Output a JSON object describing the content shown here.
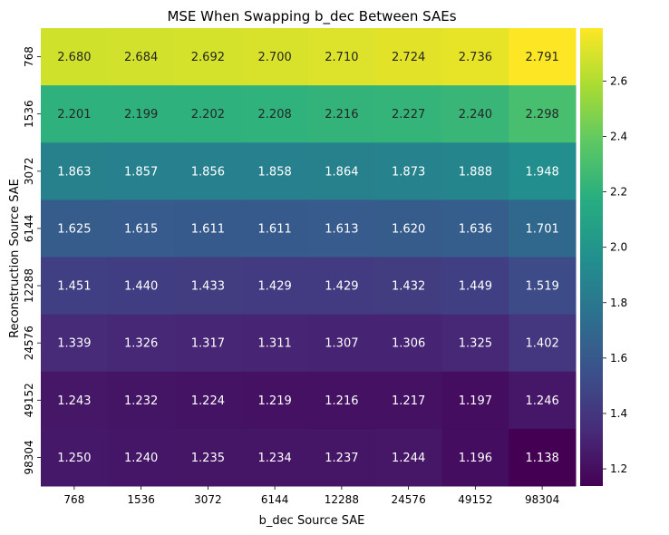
{
  "chart_data": {
    "type": "heatmap",
    "title": "MSE When Swapping b_dec Between SAEs",
    "xlabel": "b_dec Source SAE",
    "ylabel": "Reconstruction Source SAE",
    "x_categories": [
      "768",
      "1536",
      "3072",
      "6144",
      "12288",
      "24576",
      "49152",
      "98304"
    ],
    "y_categories": [
      "768",
      "1536",
      "3072",
      "6144",
      "12288",
      "24576",
      "49152",
      "98304"
    ],
    "values": [
      [
        2.68,
        2.684,
        2.692,
        2.7,
        2.71,
        2.724,
        2.736,
        2.791
      ],
      [
        2.201,
        2.199,
        2.202,
        2.208,
        2.216,
        2.227,
        2.24,
        2.298
      ],
      [
        1.863,
        1.857,
        1.856,
        1.858,
        1.864,
        1.873,
        1.888,
        1.948
      ],
      [
        1.625,
        1.615,
        1.611,
        1.611,
        1.613,
        1.62,
        1.636,
        1.701
      ],
      [
        1.451,
        1.44,
        1.433,
        1.429,
        1.429,
        1.432,
        1.449,
        1.519
      ],
      [
        1.339,
        1.326,
        1.317,
        1.311,
        1.307,
        1.306,
        1.325,
        1.402
      ],
      [
        1.243,
        1.232,
        1.224,
        1.219,
        1.216,
        1.217,
        1.197,
        1.246
      ],
      [
        1.25,
        1.24,
        1.235,
        1.234,
        1.237,
        1.244,
        1.196,
        1.138
      ]
    ],
    "value_labels": [
      [
        "2.680",
        "2.684",
        "2.692",
        "2.700",
        "2.710",
        "2.724",
        "2.736",
        "2.791"
      ],
      [
        "2.201",
        "2.199",
        "2.202",
        "2.208",
        "2.216",
        "2.227",
        "2.240",
        "2.298"
      ],
      [
        "1.863",
        "1.857",
        "1.856",
        "1.858",
        "1.864",
        "1.873",
        "1.888",
        "1.948"
      ],
      [
        "1.625",
        "1.615",
        "1.611",
        "1.611",
        "1.613",
        "1.620",
        "1.636",
        "1.701"
      ],
      [
        "1.451",
        "1.440",
        "1.433",
        "1.429",
        "1.429",
        "1.432",
        "1.449",
        "1.519"
      ],
      [
        "1.339",
        "1.326",
        "1.317",
        "1.311",
        "1.307",
        "1.306",
        "1.325",
        "1.402"
      ],
      [
        "1.243",
        "1.232",
        "1.224",
        "1.219",
        "1.216",
        "1.217",
        "1.197",
        "1.246"
      ],
      [
        "1.250",
        "1.240",
        "1.235",
        "1.234",
        "1.237",
        "1.244",
        "1.196",
        "1.138"
      ]
    ],
    "colormap": "viridis",
    "color_range": [
      1.138,
      2.791
    ],
    "colorbar_ticks": [
      1.2,
      1.4,
      1.6,
      1.8,
      2.0,
      2.2,
      2.4,
      2.6
    ],
    "colorbar_tick_labels": [
      "1.2",
      "1.4",
      "1.6",
      "1.8",
      "2.0",
      "2.2",
      "2.4",
      "2.6"
    ],
    "grid": false,
    "colorbar_position": "right"
  }
}
